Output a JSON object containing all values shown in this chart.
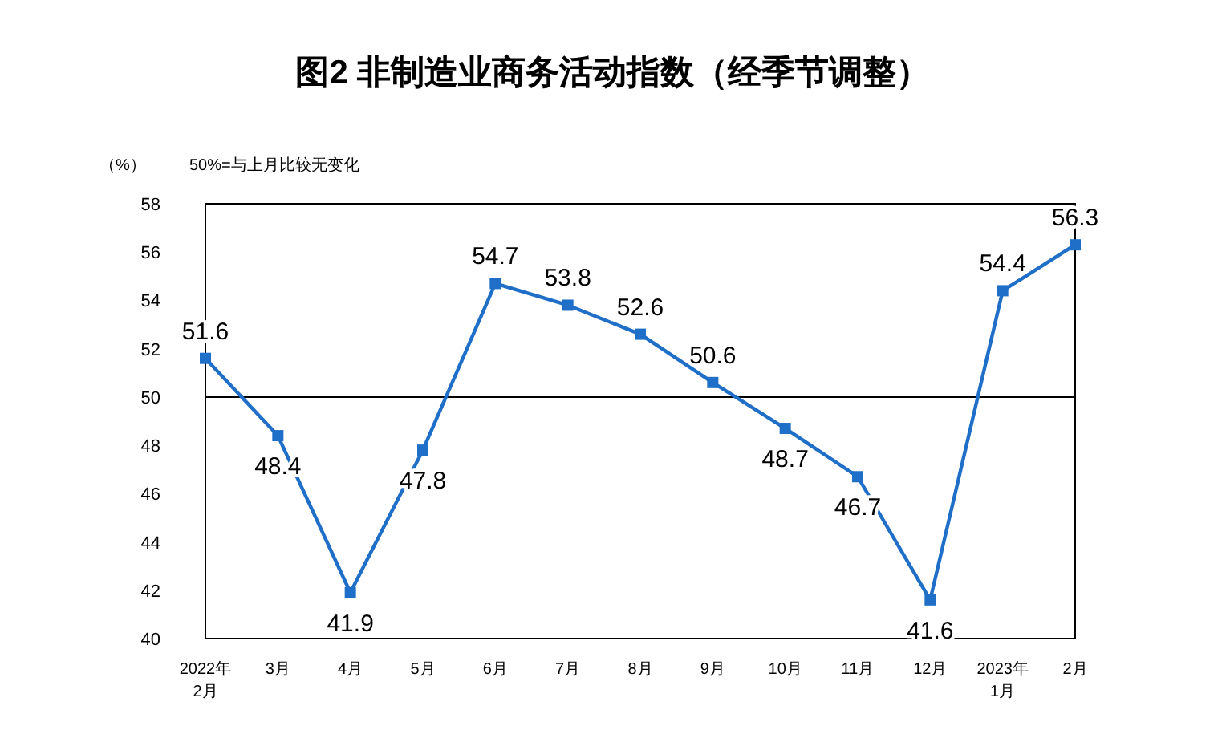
{
  "chart_data": {
    "type": "line",
    "title": "图2 非制造业商务活动指数（经季节调整）",
    "ylabel": "（%）",
    "annotations": [
      "50%=与上月比较无变化"
    ],
    "categories": [
      "2022年\n2月",
      "3月",
      "4月",
      "5月",
      "6月",
      "7月",
      "8月",
      "9月",
      "10月",
      "11月",
      "12月",
      "2023年\n1月",
      "2月"
    ],
    "series": [
      {
        "color": "#1f6fc8",
        "values": [
          51.6,
          48.4,
          41.9,
          47.8,
          54.7,
          53.8,
          52.6,
          50.6,
          48.7,
          46.7,
          41.6,
          54.4,
          56.3
        ]
      }
    ],
    "ylim": [
      40,
      58
    ],
    "yticks": [
      40,
      42,
      44,
      46,
      48,
      50,
      52,
      54,
      56,
      58
    ],
    "ref_lines": [
      {
        "axis": "y",
        "value": 50,
        "color": "#000000"
      }
    ],
    "data_labels": true,
    "marker": "square"
  }
}
